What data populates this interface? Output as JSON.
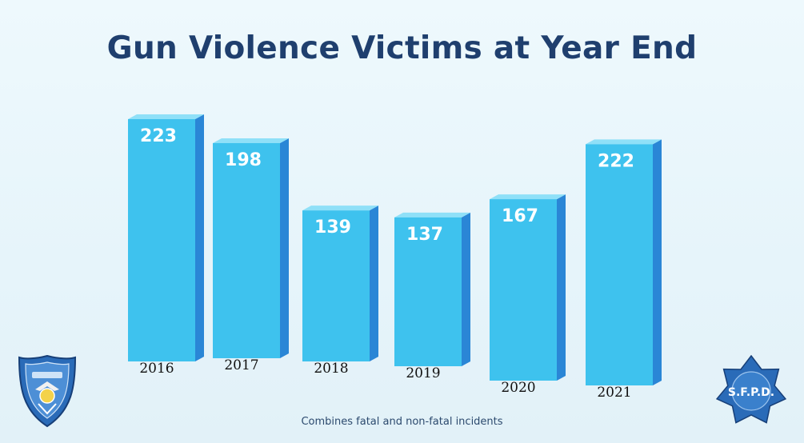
{
  "slide": {
    "title": "Gun Violence Victims at Year End",
    "footnote": "Combines fatal and non-fatal incidents"
  },
  "logos": {
    "police_badge_icon": "shield-badge-icon",
    "star_badge_icon": "star-badge-icon",
    "star_badge_text": "S.F.P.D."
  },
  "colors": {
    "title": "#1f3f6e",
    "bar_front": "#3ec2ee",
    "bar_side": "#2a86d6",
    "bar_top": "#8fe0f8",
    "bar_value_label": "#ffffff",
    "badge_blue": "#2a6bb8"
  },
  "chart_data": {
    "type": "bar",
    "title": "Gun Violence Victims at Year End",
    "categories": [
      "2016",
      "2017",
      "2018",
      "2019",
      "2020",
      "2021"
    ],
    "values": [
      223,
      198,
      139,
      137,
      167,
      222
    ],
    "xlabel": "",
    "ylabel": "",
    "ylim": [
      0,
      230
    ],
    "grid": false,
    "legend": "none",
    "data_labels": true,
    "note": "Combines fatal and non-fatal incidents"
  }
}
